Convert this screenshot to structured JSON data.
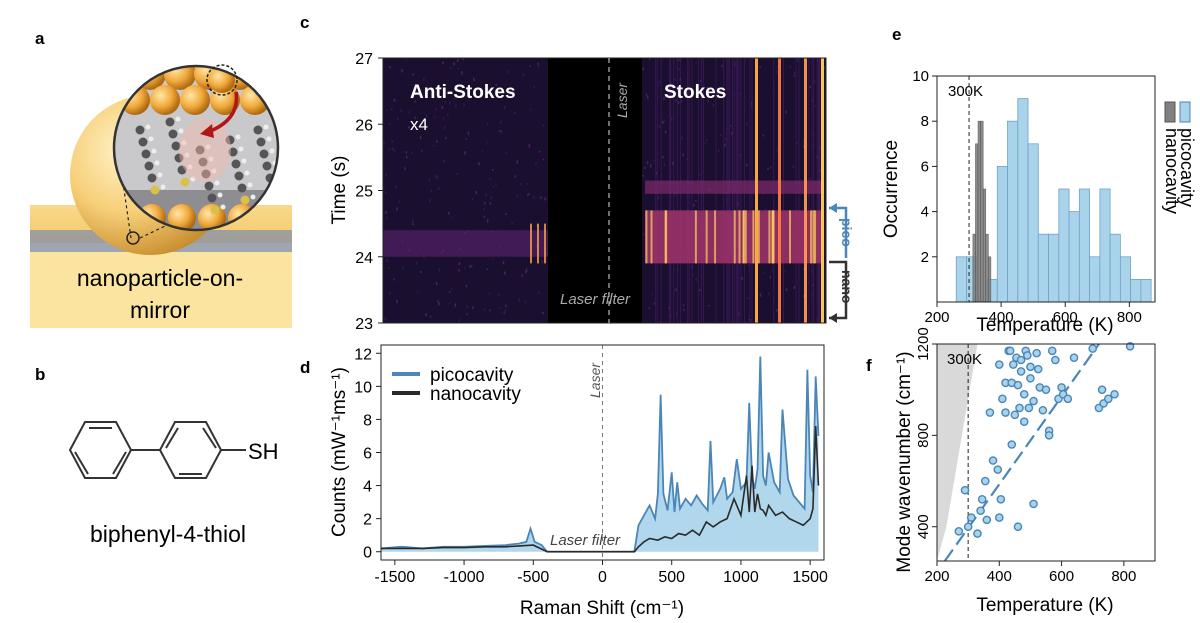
{
  "panel_labels": {
    "a": "a",
    "b": "b",
    "c": "c",
    "d": "d",
    "e": "e",
    "f": "f"
  },
  "panel_a": {
    "caption_line1": "nanoparticle-on-",
    "caption_line2": "mirror"
  },
  "panel_b": {
    "substituent": "SH",
    "molecule_name": "biphenyl-4-thiol"
  },
  "panel_c": {
    "ylabel": "Time (s)",
    "yticks": [
      "27",
      "26",
      "25",
      "24",
      "23"
    ],
    "label_antistokes": "Anti-Stokes",
    "label_scale": "x4",
    "label_stokes": "Stokes",
    "label_laser": "Laser",
    "label_laser_filter": "Laser filter",
    "marker_pico": "pico",
    "marker_nano": "nano"
  },
  "colors": {
    "picocavity": "#4a86b8",
    "picocavity_fill": "#a8d3ea",
    "nanocavity": "#2a2a2a",
    "nano_hist": "#808080",
    "heatmap_bg": "#1a0f2e",
    "heatmap_hot": "#ffd25a"
  },
  "chart_data": [
    {
      "type": "line",
      "panel": "d",
      "xlabel": "Raman Shift (cm⁻¹)",
      "ylabel": "Counts (mW⁻¹ms⁻¹)",
      "xlim": [
        -1600,
        1600
      ],
      "ylim": [
        -0.5,
        12.5
      ],
      "xticks": [
        -1500,
        -1000,
        -500,
        0,
        500,
        1000,
        1500
      ],
      "yticks": [
        0,
        2,
        4,
        6,
        8,
        10,
        12
      ],
      "annotations": {
        "laser": "Laser",
        "laser_filter": "Laser filter"
      },
      "legend": "top-left",
      "series": [
        {
          "name": "picocavity",
          "x": [
            -1600,
            -1450,
            -1300,
            -1150,
            -1000,
            -850,
            -700,
            -600,
            -550,
            -520,
            -490,
            -440,
            -400,
            -300,
            -100,
            0,
            100,
            230,
            260,
            300,
            340,
            380,
            400,
            420,
            440,
            470,
            500,
            520,
            540,
            560,
            600,
            640,
            680,
            720,
            760,
            780,
            800,
            850,
            880,
            900,
            940,
            970,
            1000,
            1040,
            1060,
            1080,
            1100,
            1120,
            1140,
            1160,
            1180,
            1200,
            1240,
            1280,
            1300,
            1340,
            1380,
            1420,
            1460,
            1480,
            1500,
            1520,
            1540,
            1560
          ],
          "y": [
            0.2,
            0.3,
            0.2,
            0.3,
            0.3,
            0.35,
            0.4,
            0.5,
            0.6,
            1.4,
            0.6,
            0.4,
            0,
            0,
            0,
            0,
            0,
            0,
            1.6,
            2.2,
            2.8,
            2.0,
            3.5,
            9.5,
            3.5,
            2.5,
            4.8,
            2.4,
            4.2,
            2.6,
            3.2,
            2.8,
            3.4,
            2.9,
            2.5,
            6.7,
            3.0,
            3.8,
            4.5,
            3.2,
            3.6,
            5.6,
            3.8,
            4.2,
            9.0,
            4.5,
            3.8,
            5.0,
            11.8,
            4.6,
            4.0,
            6.0,
            4.2,
            3.6,
            8.6,
            4.4,
            3.4,
            3.0,
            2.6,
            11.0,
            4.6,
            3.6,
            10.6,
            7.0
          ]
        },
        {
          "name": "nanocavity",
          "x": [
            -1600,
            -1450,
            -1300,
            -1150,
            -1000,
            -850,
            -700,
            -600,
            -500,
            -400,
            -300,
            -100,
            0,
            100,
            230,
            260,
            300,
            340,
            400,
            450,
            500,
            550,
            600,
            650,
            700,
            750,
            800,
            850,
            900,
            950,
            1000,
            1040,
            1060,
            1080,
            1100,
            1120,
            1140,
            1160,
            1180,
            1200,
            1250,
            1300,
            1350,
            1400,
            1450,
            1500,
            1520,
            1540,
            1560
          ],
          "y": [
            0.2,
            0.2,
            0.2,
            0.25,
            0.25,
            0.3,
            0.3,
            0.35,
            0.4,
            0,
            0,
            0,
            0,
            0,
            0,
            0.3,
            0.6,
            0.8,
            0.7,
            0.9,
            0.8,
            1.1,
            1.0,
            1.3,
            1.0,
            1.8,
            1.5,
            1.8,
            2.0,
            3.2,
            2.2,
            4.6,
            2.4,
            5.2,
            2.4,
            3.5,
            2.6,
            2.5,
            2.2,
            2.8,
            2.2,
            2.4,
            2.0,
            1.8,
            1.6,
            2.0,
            2.6,
            7.6,
            4.0
          ]
        }
      ]
    },
    {
      "type": "bar",
      "panel": "e",
      "xlabel": "Temperature (K)",
      "ylabel": "Occurrence",
      "xlim": [
        200,
        880
      ],
      "ylim": [
        0,
        10
      ],
      "xticks": [
        200,
        400,
        600,
        800
      ],
      "yticks": [
        2,
        4,
        6,
        8,
        10
      ],
      "reference_line": {
        "x": 300,
        "label": "300K"
      },
      "legend": "right",
      "series": [
        {
          "name": "picocavity",
          "bin_width": 32,
          "bin_starts": [
            260,
            292,
            324,
            356,
            388,
            420,
            452,
            484,
            516,
            548,
            580,
            612,
            644,
            676,
            708,
            740,
            772,
            804,
            836
          ],
          "values": [
            2,
            2,
            0,
            1,
            6,
            8,
            9,
            7,
            3,
            3,
            5,
            4,
            5,
            2,
            5,
            3,
            2,
            1,
            1
          ]
        },
        {
          "name": "nanocavity",
          "bin_width": 8,
          "bin_starts": [
            312,
            320,
            328,
            336,
            344,
            352,
            360
          ],
          "values": [
            3,
            7,
            8,
            8,
            5,
            3,
            2
          ]
        }
      ]
    },
    {
      "type": "scatter",
      "panel": "f",
      "xlabel": "Temperature (K)",
      "ylabel": "Mode wavenumber (cm⁻¹)",
      "xlim": [
        200,
        900
      ],
      "ylim": [
        250,
        1200
      ],
      "xticks": [
        200,
        400,
        600,
        800
      ],
      "yticks": [
        400,
        800,
        1200
      ],
      "reference_line": {
        "x": 300,
        "label": "300K"
      },
      "fit_line": {
        "x": [
          225,
          720
        ],
        "y": [
          250,
          1200
        ]
      },
      "points": [
        [
          270,
          380
        ],
        [
          290,
          560
        ],
        [
          300,
          400
        ],
        [
          310,
          440
        ],
        [
          330,
          370
        ],
        [
          340,
          470
        ],
        [
          345,
          520
        ],
        [
          355,
          600
        ],
        [
          360,
          430
        ],
        [
          370,
          900
        ],
        [
          380,
          690
        ],
        [
          395,
          650
        ],
        [
          400,
          1110
        ],
        [
          400,
          440
        ],
        [
          405,
          520
        ],
        [
          410,
          960
        ],
        [
          420,
          1030
        ],
        [
          420,
          900
        ],
        [
          430,
          1170
        ],
        [
          435,
          1170
        ],
        [
          440,
          760
        ],
        [
          440,
          1030
        ],
        [
          445,
          1110
        ],
        [
          450,
          890
        ],
        [
          455,
          1140
        ],
        [
          460,
          400
        ],
        [
          460,
          1020
        ],
        [
          465,
          920
        ],
        [
          470,
          1080
        ],
        [
          470,
          1130
        ],
        [
          480,
          980
        ],
        [
          480,
          860
        ],
        [
          485,
          1170
        ],
        [
          490,
          1150
        ],
        [
          495,
          920
        ],
        [
          500,
          1100
        ],
        [
          500,
          1050
        ],
        [
          510,
          950
        ],
        [
          510,
          500
        ],
        [
          520,
          1160
        ],
        [
          525,
          1090
        ],
        [
          530,
          1010
        ],
        [
          540,
          910
        ],
        [
          550,
          1000
        ],
        [
          560,
          820
        ],
        [
          560,
          800
        ],
        [
          570,
          1170
        ],
        [
          580,
          1130
        ],
        [
          590,
          960
        ],
        [
          600,
          1010
        ],
        [
          605,
          980
        ],
        [
          620,
          960
        ],
        [
          640,
          1140
        ],
        [
          700,
          1180
        ],
        [
          720,
          920
        ],
        [
          730,
          1000
        ],
        [
          735,
          940
        ],
        [
          750,
          960
        ],
        [
          770,
          980
        ],
        [
          820,
          1190
        ]
      ]
    }
  ]
}
